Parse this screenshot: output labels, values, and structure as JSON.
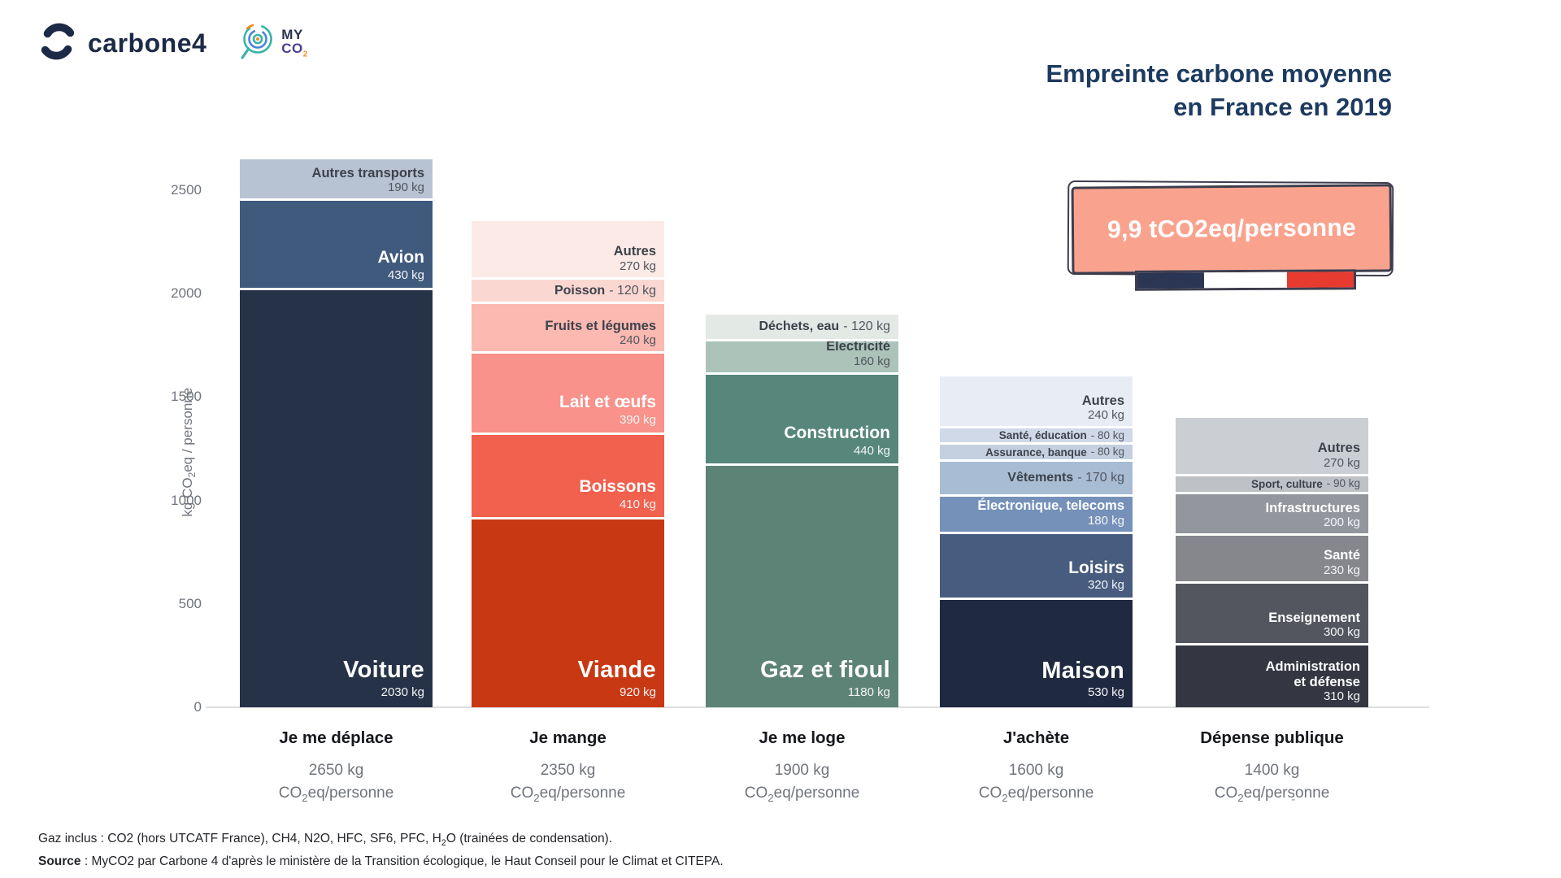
{
  "header": {
    "logo_carbone4_text": "carbone4",
    "logo_myco2_line1": "MY",
    "logo_myco2_co": "CO",
    "logo_myco2_sub": "2",
    "title_line1": "Empreinte carbone moyenne",
    "title_line2": "en France en 2019"
  },
  "badge": {
    "text": "9,9 tCO2eq/personne",
    "bg_color": "#f9a38e",
    "border_color": "#3d3d4d",
    "flag_colors": [
      "#2b3554",
      "#ffffff",
      "#e83b30"
    ]
  },
  "y_axis": {
    "label_pre": "kg CO",
    "label_sub": "2",
    "label_post": "eq / personne",
    "ticks": [
      0,
      500,
      1000,
      1500,
      2000,
      2500
    ]
  },
  "unit": {
    "pre": "CO",
    "sub": "2",
    "post": "eq/personne"
  },
  "chart_data": {
    "type": "bar",
    "stacked": true,
    "title": "Empreinte carbone moyenne en France en 2019",
    "ylabel": "kg CO2eq / personne",
    "ylim": [
      0,
      2650
    ],
    "yticks": [
      0,
      500,
      1000,
      1500,
      2000,
      2500
    ],
    "grid": false,
    "legend": "labels-inside-segments",
    "categories": [
      "Je me déplace",
      "Je mange",
      "Je me loge",
      "J'achète",
      "Dépense publique"
    ],
    "totals_kg": [
      2650,
      2350,
      1900,
      1600,
      1400
    ],
    "total_labels": [
      "2650 kg",
      "2350 kg",
      "1900 kg",
      "1600 kg",
      "1400 kg"
    ],
    "bars": [
      {
        "category": "Je me déplace",
        "total_kg": 2650,
        "total_label": "2650 kg",
        "segments": [
          {
            "label": "Autres transports",
            "value_kg": 190,
            "value_label": "190 kg",
            "color": "#b7c3d3",
            "text": "dark",
            "style": "md"
          },
          {
            "label": "Avion",
            "value_kg": 430,
            "value_label": "430 kg",
            "color": "#3f5a7d",
            "text": "light",
            "style": "lg"
          },
          {
            "label": "Voiture",
            "value_kg": 2030,
            "value_label": "2030 kg",
            "color": "#263248",
            "text": "light",
            "style": "xl"
          }
        ]
      },
      {
        "category": "Je mange",
        "total_kg": 2350,
        "total_label": "2350 kg",
        "segments": [
          {
            "label": "Autres",
            "value_kg": 270,
            "value_label": "270 kg",
            "color": "#fceae6",
            "text": "dark",
            "style": "md"
          },
          {
            "label": "Poisson",
            "value_kg": 120,
            "value_label": "120 kg",
            "color": "#fbd7d2",
            "text": "dark",
            "style": "inline"
          },
          {
            "label": "Fruits et légumes",
            "value_kg": 240,
            "value_label": "240 kg",
            "color": "#fbb9b1",
            "text": "dark",
            "style": "md"
          },
          {
            "label": "Lait et œufs",
            "value_kg": 390,
            "value_label": "390 kg",
            "color": "#f8928a",
            "text": "light",
            "style": "lg"
          },
          {
            "label": "Boissons",
            "value_kg": 410,
            "value_label": "410 kg",
            "color": "#f2604e",
            "text": "light",
            "style": "lg"
          },
          {
            "label": "Viande",
            "value_kg": 920,
            "value_label": "920 kg",
            "color": "#c83812",
            "text": "light",
            "style": "xl"
          }
        ]
      },
      {
        "category": "Je me loge",
        "total_kg": 1900,
        "total_label": "1900 kg",
        "segments": [
          {
            "label": "Déchets, eau",
            "value_kg": 120,
            "value_label": "120 kg",
            "color": "#e3e9e5",
            "text": "dark",
            "style": "inline"
          },
          {
            "label": "Électricité",
            "value_kg": 160,
            "value_label": "160 kg",
            "color": "#abc3b8",
            "text": "dark",
            "style": "md"
          },
          {
            "label": "Construction",
            "value_kg": 440,
            "value_label": "440 kg",
            "color": "#56877a",
            "text": "light",
            "style": "lg"
          },
          {
            "label": "Gaz et fioul",
            "value_kg": 1180,
            "value_label": "1180 kg",
            "color": "#5d8376",
            "text": "light",
            "style": "xl"
          }
        ]
      },
      {
        "category": "J'achète",
        "total_kg": 1600,
        "total_label": "1600 kg",
        "segments": [
          {
            "label": "Autres",
            "value_kg": 240,
            "value_label": "240 kg",
            "color": "#e8edf5",
            "text": "dark",
            "style": "md"
          },
          {
            "label": "Santé, éducation",
            "value_kg": 80,
            "value_label": "80 kg",
            "color": "#cfd9e7",
            "text": "dark",
            "style": "inline-sm"
          },
          {
            "label": "Assurance, banque",
            "value_kg": 80,
            "value_label": "80 kg",
            "color": "#c4d0e0",
            "text": "dark",
            "style": "inline-sm"
          },
          {
            "label": "Vêtements",
            "value_kg": 170,
            "value_label": "170 kg",
            "color": "#a8bcd4",
            "text": "dark",
            "style": "inline"
          },
          {
            "label": "Électronique, telecoms",
            "value_kg": 180,
            "value_label": "180 kg",
            "color": "#7591b9",
            "text": "light",
            "style": "md"
          },
          {
            "label": "Loisirs",
            "value_kg": 320,
            "value_label": "320 kg",
            "color": "#475c7e",
            "text": "light",
            "style": "lg"
          },
          {
            "label": "Maison",
            "value_kg": 530,
            "value_label": "530 kg",
            "color": "#1f2a40",
            "text": "light",
            "style": "xl"
          }
        ]
      },
      {
        "category": "Dépense publique",
        "total_kg": 1400,
        "total_label": "1400 kg",
        "segments": [
          {
            "label": "Autres",
            "value_kg": 270,
            "value_label": "270 kg",
            "color": "#cbced3",
            "text": "dark",
            "style": "md"
          },
          {
            "label": "Sport, culture",
            "value_kg": 90,
            "value_label": "90 kg",
            "color": "#bec1c6",
            "text": "dark",
            "style": "inline-sm"
          },
          {
            "label": "Infrastructures",
            "value_kg": 200,
            "value_label": "200 kg",
            "color": "#94969d",
            "text": "light",
            "style": "md"
          },
          {
            "label": "Santé",
            "value_kg": 230,
            "value_label": "230 kg",
            "color": "#85878d",
            "text": "light",
            "style": "md"
          },
          {
            "label": "Enseignement",
            "value_kg": 300,
            "value_label": "300 kg",
            "color": "#53555f",
            "text": "light",
            "style": "md"
          },
          {
            "label": "Administration\net défense",
            "value_kg": 310,
            "value_label": "310 kg",
            "color": "#343741",
            "text": "light",
            "style": "md"
          }
        ]
      }
    ]
  },
  "footer": {
    "line1_pre": "Gaz inclus : CO2 (hors UTCATF France), CH4, N2O, HFC, SF6, PFC, H",
    "line1_sub": "2",
    "line1_post": "O (trainées de condensation).",
    "source_label": "Source",
    "line2": " : MyCO2 par Carbone 4 d'après le ministère de la Transition écologique, le Haut Conseil pour le Climat et CITEPA."
  },
  "misc": {
    "stray_dash": "-"
  }
}
